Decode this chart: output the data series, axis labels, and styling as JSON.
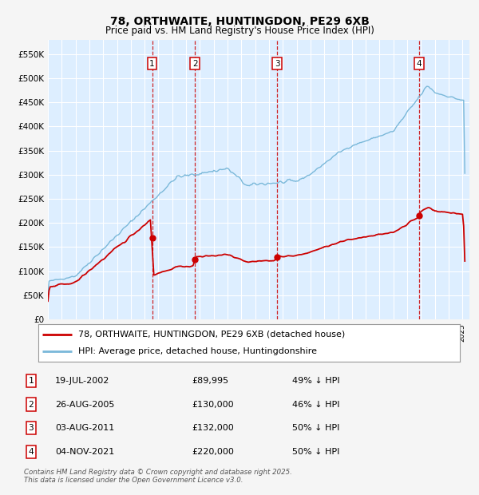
{
  "title": "78, ORTHWAITE, HUNTINGDON, PE29 6XB",
  "subtitle": "Price paid vs. HM Land Registry's House Price Index (HPI)",
  "bg_color": "#f5f5f5",
  "plot_bg": "#ddeeff",
  "grid_color": "#ffffff",
  "hpi_color": "#7ab8d9",
  "price_color": "#cc0000",
  "vline_color": "#cc0000",
  "ylim": [
    0,
    580000
  ],
  "yticks": [
    0,
    50000,
    100000,
    150000,
    200000,
    250000,
    300000,
    350000,
    400000,
    450000,
    500000,
    550000
  ],
  "ytick_labels": [
    "£0",
    "£50K",
    "£100K",
    "£150K",
    "£200K",
    "£250K",
    "£300K",
    "£350K",
    "£400K",
    "£450K",
    "£500K",
    "£550K"
  ],
  "xmin": 1995.0,
  "xmax": 2025.5,
  "transactions": [
    {
      "num": 1,
      "year": 2002.54,
      "price": 89995,
      "label": "1"
    },
    {
      "num": 2,
      "year": 2005.65,
      "price": 130000,
      "label": "2"
    },
    {
      "num": 3,
      "year": 2011.58,
      "price": 132000,
      "label": "3"
    },
    {
      "num": 4,
      "year": 2021.84,
      "price": 220000,
      "label": "4"
    }
  ],
  "legend_entries": [
    {
      "label": "78, ORTHWAITE, HUNTINGDON, PE29 6XB (detached house)",
      "color": "#cc0000"
    },
    {
      "label": "HPI: Average price, detached house, Huntingdonshire",
      "color": "#7ab8d9"
    }
  ],
  "table_rows": [
    {
      "num": "1",
      "date": "19-JUL-2002",
      "price": "£89,995",
      "note": "49% ↓ HPI"
    },
    {
      "num": "2",
      "date": "26-AUG-2005",
      "price": "£130,000",
      "note": "46% ↓ HPI"
    },
    {
      "num": "3",
      "date": "03-AUG-2011",
      "price": "£132,000",
      "note": "50% ↓ HPI"
    },
    {
      "num": "4",
      "date": "04-NOV-2021",
      "price": "£220,000",
      "note": "50% ↓ HPI"
    }
  ],
  "footer": "Contains HM Land Registry data © Crown copyright and database right 2025.\nThis data is licensed under the Open Government Licence v3.0."
}
